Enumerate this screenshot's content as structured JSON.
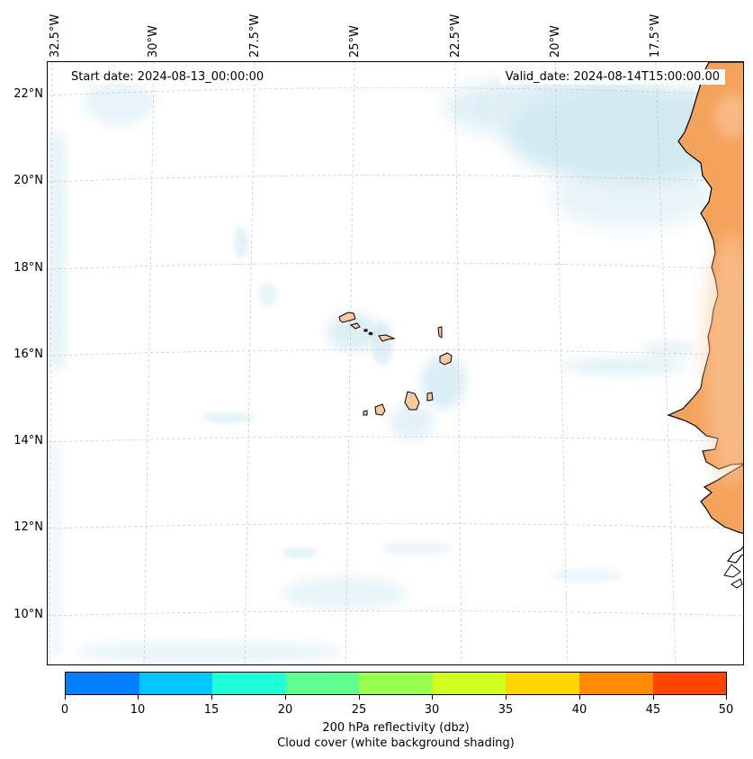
{
  "map": {
    "start_date_label": "Start date: 2024-08-13_00:00:00",
    "valid_date_label": "Valid_date: 2024-08-14T15:00:00.00",
    "longitude_labels": [
      "32.5°W",
      "30°W",
      "27.5°W",
      "25°W",
      "22.5°W",
      "20°W",
      "17.5°W"
    ],
    "latitude_labels": [
      "22°N",
      "20°N",
      "18°N",
      "16°N",
      "14°N",
      "12°N",
      "10°N"
    ],
    "colors": {
      "land": "#f4a35c",
      "land_light": "#f9c9a0",
      "island": "#f8c9a0",
      "cloud": "#add8e6",
      "coastline": "#000000",
      "gridline": "#bbbbbb"
    }
  },
  "colorbar": {
    "tick_labels": [
      "0",
      "10",
      "15",
      "20",
      "25",
      "30",
      "35",
      "40",
      "45",
      "50"
    ],
    "segment_colors": [
      "#0080ff",
      "#00c8ff",
      "#1effd8",
      "#5eff8e",
      "#96ff50",
      "#d2ff1e",
      "#ffd700",
      "#ff8c00",
      "#ff4500"
    ],
    "title_line1": "200 hPa reflectivity (dbz)",
    "title_line2": "Cloud cover (white background shading)"
  }
}
